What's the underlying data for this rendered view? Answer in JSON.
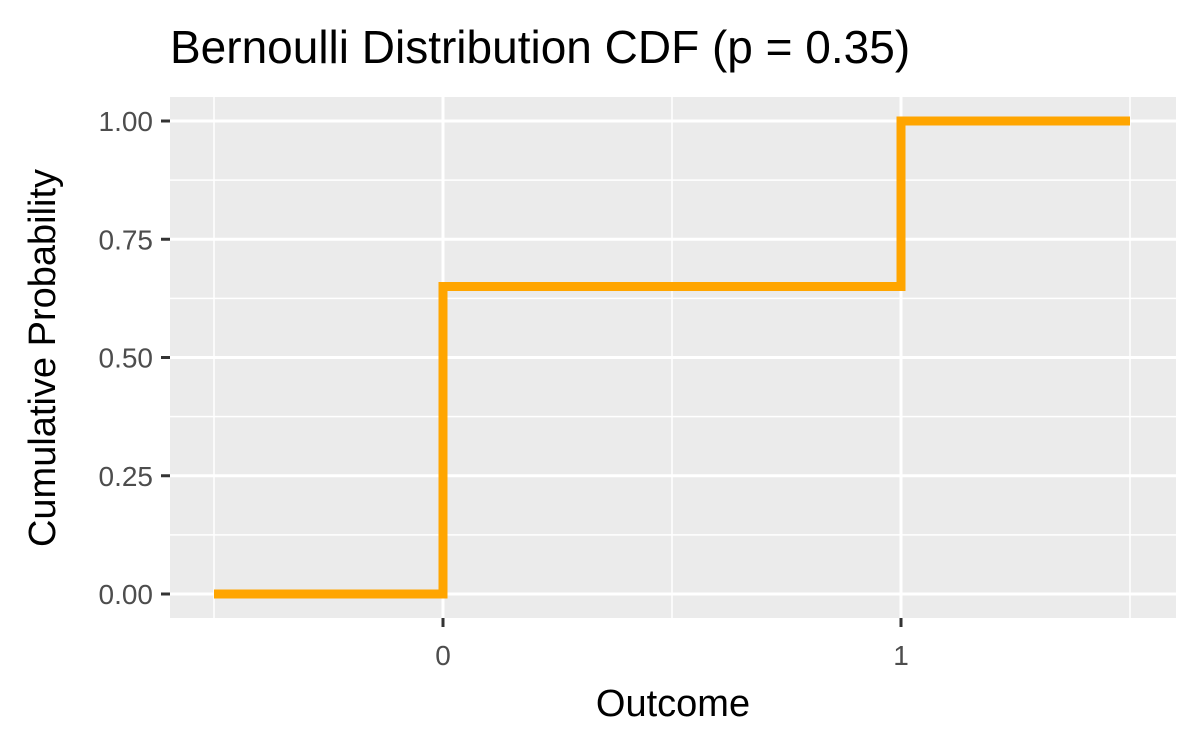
{
  "chart_data": {
    "type": "line",
    "step": true,
    "title": "Bernoulli Distribution CDF (p = 0.35)",
    "xlabel": "Outcome",
    "ylabel": "Cumulative Probability",
    "xlim": [
      -0.5,
      1.5
    ],
    "ylim": [
      0,
      1
    ],
    "x_ticks": [
      0,
      1
    ],
    "x_tick_labels": [
      "0",
      "1"
    ],
    "y_ticks": [
      0,
      0.25,
      0.5,
      0.75,
      1
    ],
    "y_tick_labels": [
      "0.00",
      "0.25",
      "0.50",
      "0.75",
      "1.00"
    ],
    "grid": true,
    "line_color": "#FFA500",
    "panel_color": "#EBEBEB",
    "series": [
      {
        "x": [
          -0.5,
          0,
          0,
          1,
          1,
          1.5
        ],
        "y": [
          0,
          0,
          0.65,
          0.65,
          1,
          1
        ]
      }
    ]
  }
}
